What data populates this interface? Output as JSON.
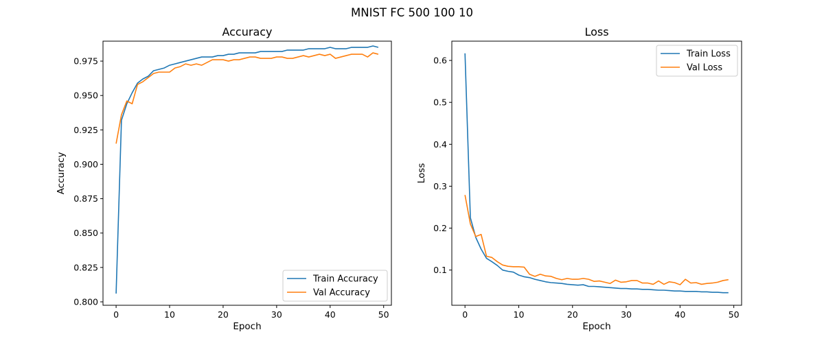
{
  "figure": {
    "suptitle": "MNIST FC 500 100 10"
  },
  "colors": {
    "train": "#1f77b4",
    "val": "#ff7f0e"
  },
  "chart_data": [
    {
      "type": "line",
      "title": "Accuracy",
      "xlabel": "Epoch",
      "ylabel": "Accuracy",
      "xlim": [
        -2.45,
        51.45
      ],
      "ylim": [
        0.7975,
        0.9895
      ],
      "xticks": [
        0,
        10,
        20,
        30,
        40,
        50
      ],
      "yticks": [
        0.8,
        0.825,
        0.85,
        0.875,
        0.9,
        0.925,
        0.95,
        0.975
      ],
      "ytick_labels": [
        "0.800",
        "0.825",
        "0.850",
        "0.875",
        "0.900",
        "0.925",
        "0.950",
        "0.975"
      ],
      "legend_position": "lower-right",
      "x": [
        0,
        1,
        2,
        3,
        4,
        5,
        6,
        7,
        8,
        9,
        10,
        11,
        12,
        13,
        14,
        15,
        16,
        17,
        18,
        19,
        20,
        21,
        22,
        23,
        24,
        25,
        26,
        27,
        28,
        29,
        30,
        31,
        32,
        33,
        34,
        35,
        36,
        37,
        38,
        39,
        40,
        41,
        42,
        43,
        44,
        45,
        46,
        47,
        48,
        49
      ],
      "series": [
        {
          "name": "Train Accuracy",
          "color": "#1f77b4",
          "values": [
            0.806,
            0.932,
            0.944,
            0.952,
            0.959,
            0.962,
            0.964,
            0.968,
            0.969,
            0.97,
            0.972,
            0.973,
            0.974,
            0.975,
            0.976,
            0.977,
            0.978,
            0.978,
            0.978,
            0.979,
            0.979,
            0.98,
            0.98,
            0.981,
            0.981,
            0.981,
            0.981,
            0.982,
            0.982,
            0.982,
            0.982,
            0.982,
            0.983,
            0.983,
            0.983,
            0.983,
            0.984,
            0.984,
            0.984,
            0.984,
            0.985,
            0.984,
            0.984,
            0.984,
            0.985,
            0.985,
            0.985,
            0.985,
            0.986,
            0.985
          ]
        },
        {
          "name": "Val Accuracy",
          "color": "#ff7f0e",
          "values": [
            0.915,
            0.936,
            0.946,
            0.944,
            0.958,
            0.96,
            0.963,
            0.966,
            0.967,
            0.967,
            0.967,
            0.97,
            0.971,
            0.973,
            0.972,
            0.973,
            0.972,
            0.974,
            0.976,
            0.976,
            0.976,
            0.975,
            0.976,
            0.976,
            0.977,
            0.978,
            0.978,
            0.977,
            0.977,
            0.977,
            0.978,
            0.978,
            0.977,
            0.977,
            0.978,
            0.979,
            0.978,
            0.979,
            0.98,
            0.979,
            0.98,
            0.977,
            0.978,
            0.979,
            0.98,
            0.98,
            0.98,
            0.978,
            0.981,
            0.98
          ]
        }
      ]
    },
    {
      "type": "line",
      "title": "Loss",
      "xlabel": "Epoch",
      "ylabel": "Loss",
      "xlim": [
        -2.45,
        51.45
      ],
      "ylim": [
        0.016,
        0.646
      ],
      "xticks": [
        0,
        10,
        20,
        30,
        40,
        50
      ],
      "yticks": [
        0.1,
        0.2,
        0.3,
        0.4,
        0.5,
        0.6
      ],
      "ytick_labels": [
        "0.1",
        "0.2",
        "0.3",
        "0.4",
        "0.5",
        "0.6"
      ],
      "legend_position": "upper-right",
      "x": [
        0,
        1,
        2,
        3,
        4,
        5,
        6,
        7,
        8,
        9,
        10,
        11,
        12,
        13,
        14,
        15,
        16,
        17,
        18,
        19,
        20,
        21,
        22,
        23,
        24,
        25,
        26,
        27,
        28,
        29,
        30,
        31,
        32,
        33,
        34,
        35,
        36,
        37,
        38,
        39,
        40,
        41,
        42,
        43,
        44,
        45,
        46,
        47,
        48,
        49
      ],
      "series": [
        {
          "name": "Train Loss",
          "color": "#1f77b4",
          "values": [
            0.617,
            0.225,
            0.178,
            0.15,
            0.128,
            0.12,
            0.111,
            0.1,
            0.097,
            0.095,
            0.088,
            0.084,
            0.082,
            0.078,
            0.075,
            0.072,
            0.07,
            0.069,
            0.068,
            0.066,
            0.065,
            0.064,
            0.065,
            0.061,
            0.061,
            0.06,
            0.059,
            0.058,
            0.057,
            0.056,
            0.056,
            0.055,
            0.055,
            0.054,
            0.054,
            0.053,
            0.052,
            0.052,
            0.051,
            0.05,
            0.05,
            0.049,
            0.049,
            0.049,
            0.048,
            0.048,
            0.047,
            0.047,
            0.046,
            0.046
          ]
        },
        {
          "name": "Val Loss",
          "color": "#ff7f0e",
          "values": [
            0.279,
            0.21,
            0.18,
            0.185,
            0.133,
            0.13,
            0.12,
            0.112,
            0.109,
            0.108,
            0.108,
            0.107,
            0.09,
            0.085,
            0.09,
            0.086,
            0.085,
            0.08,
            0.077,
            0.08,
            0.078,
            0.078,
            0.08,
            0.078,
            0.073,
            0.074,
            0.071,
            0.068,
            0.076,
            0.071,
            0.072,
            0.075,
            0.075,
            0.069,
            0.069,
            0.066,
            0.074,
            0.066,
            0.072,
            0.07,
            0.065,
            0.078,
            0.069,
            0.07,
            0.066,
            0.068,
            0.069,
            0.071,
            0.075,
            0.077
          ]
        }
      ]
    }
  ]
}
